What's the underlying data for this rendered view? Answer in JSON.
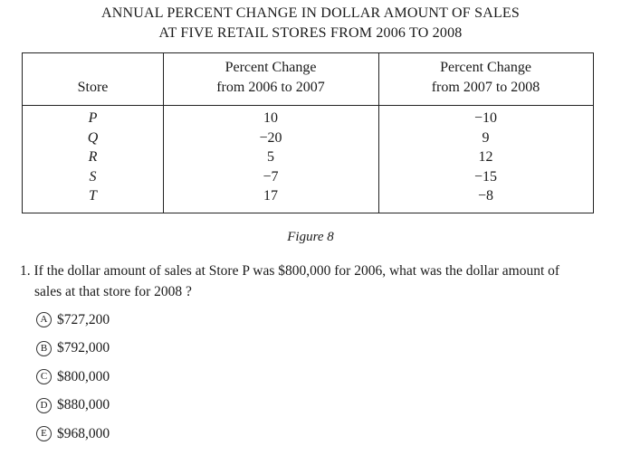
{
  "title_line1": "ANNUAL PERCENT CHANGE IN DOLLAR AMOUNT OF SALES",
  "title_line2": "AT FIVE RETAIL STORES FROM 2006 TO 2008",
  "table": {
    "header_store": "Store",
    "header_col1_line1": "Percent Change",
    "header_col1_line2": "from 2006 to 2007",
    "header_col2_line1": "Percent Change",
    "header_col2_line2": "from 2007 to 2008",
    "stores": [
      "P",
      "Q",
      "R",
      "S",
      "T"
    ],
    "col1": [
      "10",
      "−20",
      "5",
      "−7",
      "17"
    ],
    "col2": [
      "−10",
      "9",
      "12",
      "−15",
      "−8"
    ]
  },
  "caption": "Figure 8",
  "question": {
    "number": "1.",
    "line1": "If the dollar amount of sales at Store P was $800,000 for 2006, what was the dollar amount of",
    "line2": "sales at that store for 2008 ?"
  },
  "choices": [
    {
      "letter": "A",
      "text": "$727,200"
    },
    {
      "letter": "B",
      "text": "$792,000"
    },
    {
      "letter": "C",
      "text": "$800,000"
    },
    {
      "letter": "D",
      "text": "$880,000"
    },
    {
      "letter": "E",
      "text": "$968,000"
    }
  ]
}
